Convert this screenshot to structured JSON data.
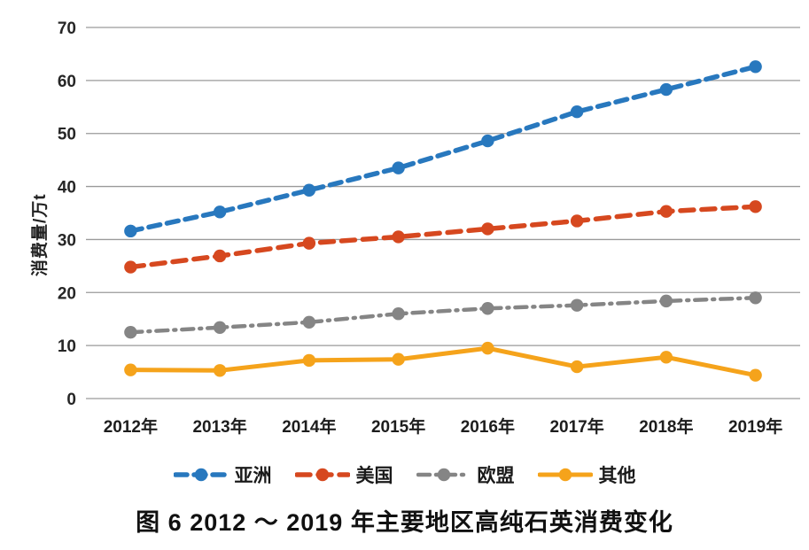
{
  "chart_data": {
    "type": "line",
    "title": "",
    "caption": "图 6  2012 ～ 2019 年主要地区高纯石英消费变化",
    "xlabel": "",
    "ylabel": "消费量/万t",
    "ylim": [
      0,
      70
    ],
    "yticks": [
      0,
      10,
      20,
      30,
      40,
      50,
      60,
      70
    ],
    "grid": true,
    "gridline_color": "#9a9a9a",
    "legend_position": "bottom",
    "categories": [
      "2012年",
      "2013年",
      "2014年",
      "2015年",
      "2016年",
      "2017年",
      "2018年",
      "2019年"
    ],
    "series": [
      {
        "id": "asia",
        "name": "亚洲",
        "color": "#2878BE",
        "line_style": "dashed",
        "dash": "13 8",
        "width": 5.5,
        "marker": "circle",
        "values": [
          31.6,
          35.2,
          39.3,
          43.5,
          48.6,
          54.1,
          58.3,
          62.6
        ]
      },
      {
        "id": "usa",
        "name": "美国",
        "color": "#D6481F",
        "line_style": "dashed",
        "dash": "15 9",
        "width": 5.5,
        "marker": "circle",
        "values": [
          24.8,
          26.9,
          29.3,
          30.5,
          32.0,
          33.5,
          35.3,
          36.2
        ]
      },
      {
        "id": "eu",
        "name": "欧盟",
        "color": "#858585",
        "line_style": "dash-dot",
        "dash": "13 7 2 7",
        "width": 4.5,
        "marker": "circle",
        "values": [
          12.5,
          13.4,
          14.4,
          16.0,
          17.0,
          17.6,
          18.4,
          19.0
        ]
      },
      {
        "id": "other",
        "name": "其他",
        "color": "#F5A31B",
        "line_style": "solid",
        "dash": "",
        "width": 5.0,
        "marker": "circle",
        "values": [
          5.4,
          5.3,
          7.2,
          7.4,
          9.5,
          6.0,
          7.8,
          4.4
        ]
      }
    ]
  }
}
